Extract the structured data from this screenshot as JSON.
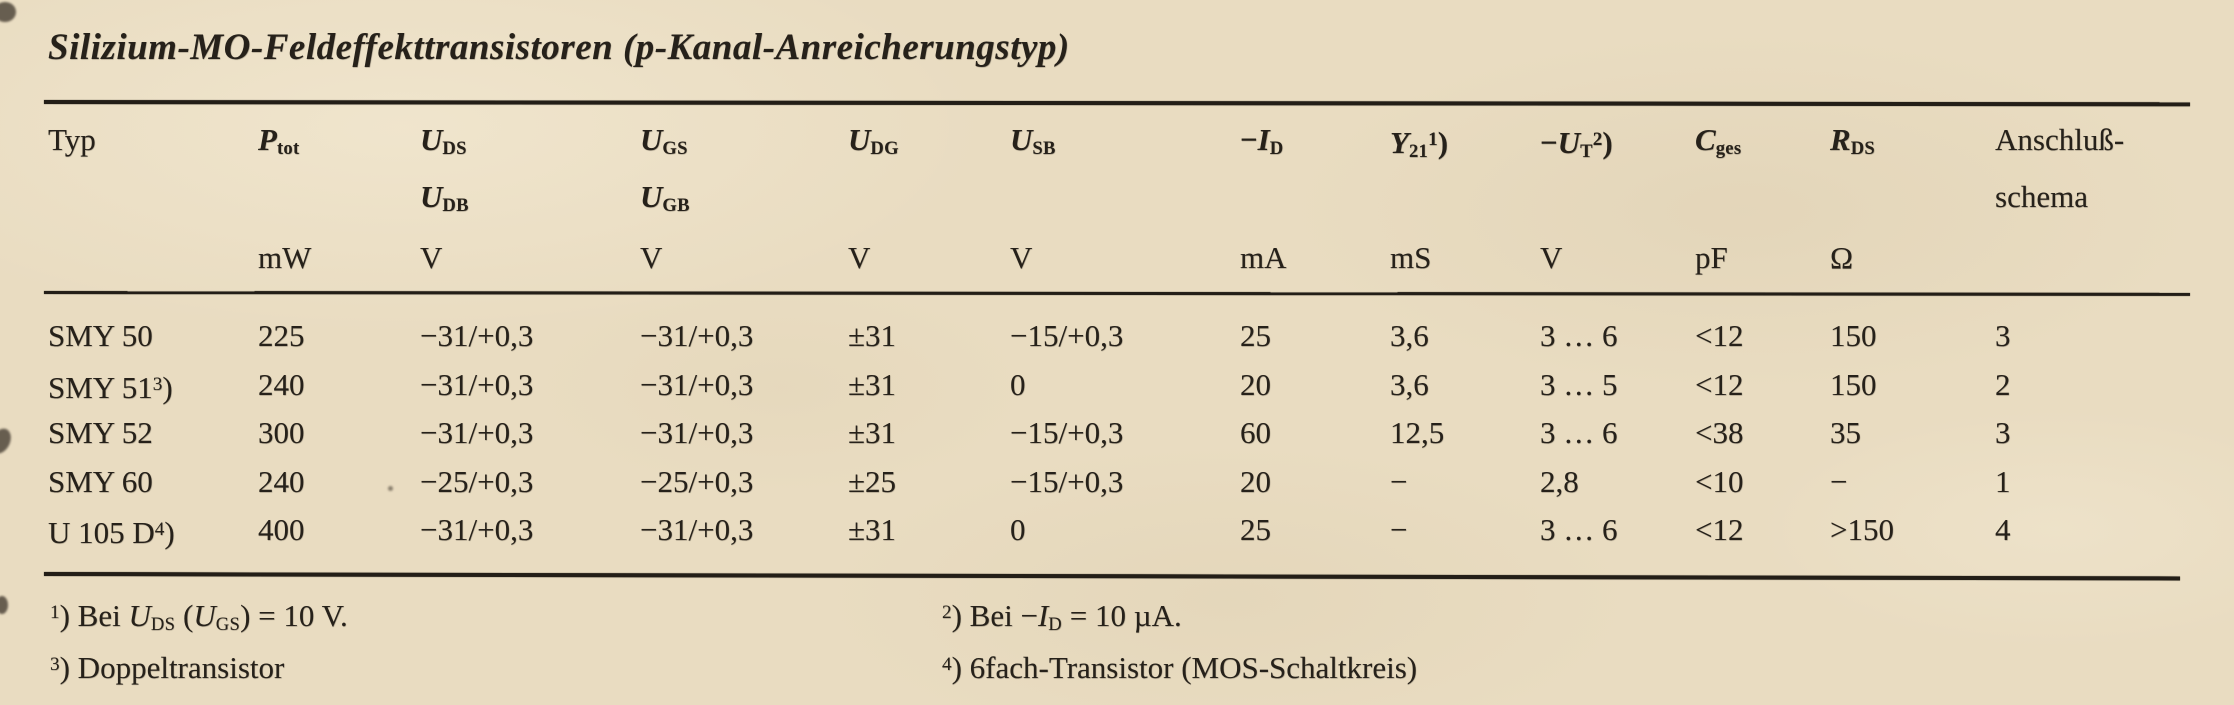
{
  "page": {
    "title": "Silizium-MO-Feldeffekttransistoren (p-Kanal-Anreicherungstyp)",
    "paper_color": "#e9dcc1",
    "ink_color": "#26211a"
  },
  "table": {
    "header": {
      "line1": [
        "Typ",
        "*P*_{tot}",
        "*U*_{DS}",
        "*U*_{GS}",
        "*U*_{DG}",
        "*U*_{SB}",
        "−*I*_{D}",
        "*Y*_{21}^{1})",
        "−*U*_{T}^{2})",
        "*C*_{ges}",
        "*R*_{DS}",
        "Anschluß-"
      ],
      "line2": [
        "",
        "",
        "*U*_{DB}",
        "*U*_{GB}",
        "",
        "",
        "",
        "",
        "",
        "",
        "",
        "schema"
      ],
      "units": [
        "",
        "mW",
        "V",
        "V",
        "V",
        "V",
        "mA",
        "mS",
        "V",
        "pF",
        "Ω",
        ""
      ]
    },
    "rows": [
      [
        "SMY 50",
        "225",
        "−31/+0,3",
        "−31/+0,3",
        "±31",
        "−15/+0,3",
        "25",
        "3,6",
        "3 … 6",
        "<12",
        "150",
        "3"
      ],
      [
        "SMY 51^{3})",
        "240",
        "−31/+0,3",
        "−31/+0,3",
        "±31",
        "0",
        "20",
        "3,6",
        "3 … 5",
        "<12",
        "150",
        "2"
      ],
      [
        "SMY 52",
        "300",
        "−31/+0,3",
        "−31/+0,3",
        "±31",
        "−15/+0,3",
        "60",
        "12,5",
        "3 … 6",
        "<38",
        "35",
        "3"
      ],
      [
        "SMY 60",
        "240",
        "−25/+0,3",
        "−25/+0,3",
        "±25",
        "−15/+0,3",
        "20",
        "−",
        "2,8",
        "<10",
        "−",
        "1"
      ],
      [
        "U 105 D^{4})",
        "400",
        "−31/+0,3",
        "−31/+0,3",
        "±31",
        "0",
        "25",
        "−",
        "3 … 6",
        "<12",
        ">150",
        "4"
      ]
    ]
  },
  "footnotes": {
    "fn1": "^{1}) Bei *U*_{DS} (*U*_{GS}) = 10 V.",
    "fn2": "^{2}) Bei −*I*_{D} = 10 µA.",
    "fn3": "^{3}) Doppeltransistor",
    "fn4": "^{4}) 6fach-Transistor (MOS-Schaltkreis)"
  }
}
